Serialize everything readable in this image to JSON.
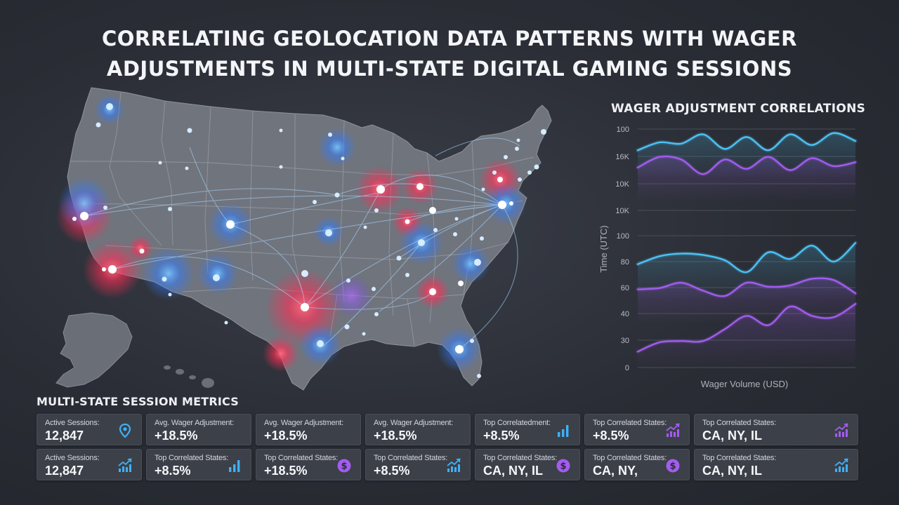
{
  "page": {
    "title_line1": "CORRELATING GEOLOCATION DATA PATTERNS WITH WAGER",
    "title_line2": "ADJUSTMENTS IN MULTI-STATE DIGITAL GAMING SESSIONS"
  },
  "colors": {
    "background": "#2a2d35",
    "land": "#6f737c",
    "hotspot_red": "#ff3b5c",
    "hotspot_blue": "#3a8bff",
    "line_cyan": "#4cc3f5",
    "line_purple": "#a35cf0"
  },
  "chart_data": {
    "type": "line",
    "title": "WAGER ADJUSTMENT CORRELATIONS",
    "xlabel": "Wager Volume (USD)",
    "ylabel": "Time (UTC)",
    "y_tick_labels": [
      "100",
      "16K",
      "10K",
      "10K",
      "100",
      "80",
      "60",
      "40",
      "30",
      "0"
    ],
    "grid": true,
    "x": [
      0,
      1,
      2,
      3,
      4,
      5,
      6,
      7,
      8,
      9,
      10
    ],
    "series": [
      {
        "color": "#4cc3f5",
        "values": [
          24,
          30,
          29,
          36,
          25,
          34,
          24,
          36,
          28,
          37,
          31
        ]
      },
      {
        "color": "#a35cf0",
        "values": [
          11,
          19,
          17,
          6,
          17,
          10,
          19,
          9,
          18,
          12,
          15
        ]
      },
      {
        "color": "#4cc3f5",
        "values": [
          -62,
          -56,
          -54,
          -55,
          -59,
          -68,
          -53,
          -58,
          -48,
          -60,
          -46
        ]
      },
      {
        "color": "#a35cf0",
        "values": [
          -81,
          -80,
          -76,
          -82,
          -86,
          -76,
          -79,
          -78,
          -73,
          -74,
          -84
        ]
      },
      {
        "color": "#a35cf0",
        "values": [
          -128,
          -121,
          -120,
          -120,
          -111,
          -101,
          -108,
          -94,
          -101,
          -102,
          -92
        ]
      }
    ]
  },
  "metrics": {
    "title": "MULTI-STATE SESSION METRICS",
    "rows": [
      [
        {
          "label": "Active Sessions:",
          "value": "12,847",
          "icon": "location-pin-icon"
        },
        {
          "label": "Avg. Wager Adjustment:",
          "value": "+18.5%",
          "icon": "none"
        },
        {
          "label": "Avg. Wager Adjustment:",
          "value": "+18.5%",
          "icon": "none"
        },
        {
          "label": "Avg. Wager Adjustment:",
          "value": "+18.5%",
          "icon": "none"
        },
        {
          "label": "Top Correlatedment:",
          "value": "+8.5%",
          "icon": "bar-chart-icon"
        },
        {
          "label": "Top Correlated States:",
          "value": "+8.5%",
          "icon": "trend-up-chart-icon"
        },
        {
          "label": "Top Correlated States:",
          "value": "CA, NY, IL",
          "icon": "trend-up-chart-icon"
        }
      ],
      [
        {
          "label": "Active Sessions:",
          "value": "12,847",
          "icon": "trend-up-chart-icon"
        },
        {
          "label": "Top Correlated States:",
          "value": "+8.5%",
          "icon": "bar-chart-icon"
        },
        {
          "label": "Top Correlated States:",
          "value": "+18.5%",
          "icon": "dollar-coin-icon"
        },
        {
          "label": "Top Correlated States:",
          "value": "+8.5%",
          "icon": "trend-up-chart-icon"
        },
        {
          "label": "Top Correlated States:",
          "value": "CA, NY, IL",
          "icon": "dollar-coin-icon"
        },
        {
          "label": "Top Correlated States:",
          "value": "CA, NY,",
          "icon": "dollar-coin-icon"
        },
        {
          "label": "Top Correlated States:",
          "value": "CA, NY, IL",
          "icon": "trend-up-chart-icon"
        }
      ]
    ]
  }
}
